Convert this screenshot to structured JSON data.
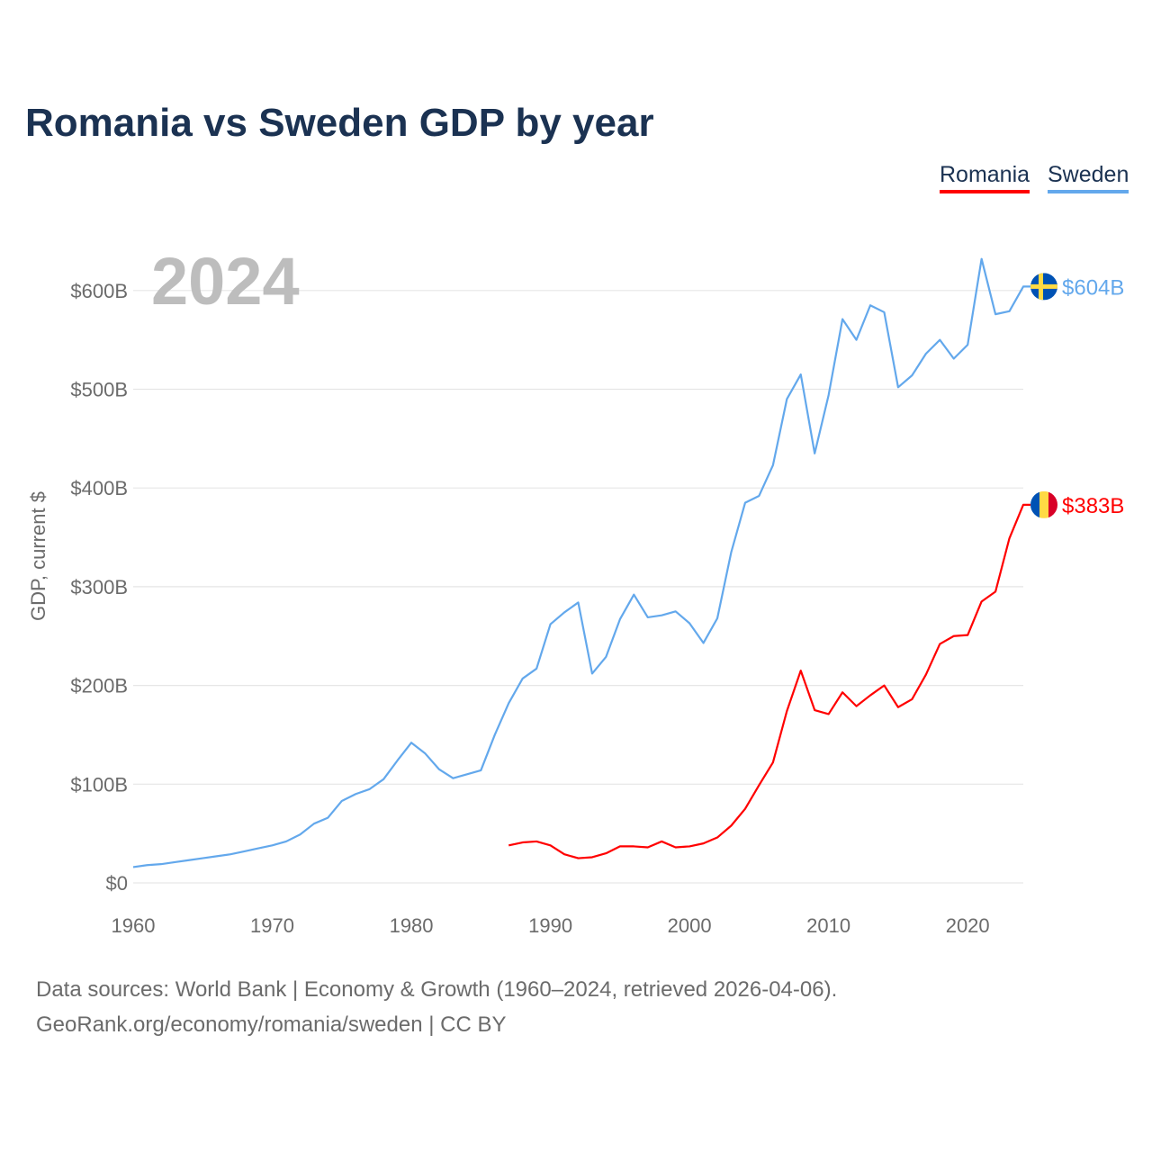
{
  "chart_data": {
    "type": "line",
    "title": "Romania vs Sweden GDP by year",
    "ylabel": "GDP, current $",
    "xlabel": "",
    "year_label": "2024",
    "xlim": [
      1960,
      2024
    ],
    "ylim": [
      0,
      650
    ],
    "x_ticks": [
      1960,
      1970,
      1980,
      1990,
      2000,
      2010,
      2020
    ],
    "y_ticks": [
      0,
      100,
      200,
      300,
      400,
      500,
      600
    ],
    "y_tick_labels": [
      "$0",
      "$100B",
      "$200B",
      "$300B",
      "$400B",
      "$500B",
      "$600B"
    ],
    "grid": true,
    "legend_position": "top-right",
    "series": [
      {
        "name": "Romania",
        "color": "#ff0000",
        "end_label": "$383B",
        "flag": "romania-flag",
        "start_year": 1987,
        "values": [
          38,
          41,
          42,
          38,
          29,
          25,
          26,
          30,
          37,
          37,
          36,
          42,
          36,
          37,
          40,
          46,
          58,
          75,
          99,
          122,
          174,
          215,
          175,
          171,
          193,
          179,
          190,
          200,
          178,
          186,
          211,
          242,
          250,
          251,
          285,
          295,
          349,
          383
        ]
      },
      {
        "name": "Sweden",
        "color": "#63a8ec",
        "end_label": "$604B",
        "flag": "sweden-flag",
        "start_year": 1960,
        "values": [
          16,
          18,
          19,
          21,
          23,
          25,
          27,
          29,
          32,
          35,
          38,
          42,
          49,
          60,
          66,
          83,
          90,
          95,
          105,
          124,
          142,
          131,
          115,
          106,
          110,
          114,
          150,
          182,
          207,
          217,
          262,
          274,
          284,
          212,
          229,
          267,
          292,
          269,
          271,
          275,
          263,
          243,
          268,
          335,
          385,
          392,
          423,
          490,
          515,
          435,
          494,
          571,
          550,
          585,
          578,
          502,
          514,
          536,
          550,
          531,
          545,
          632,
          576,
          579,
          604
        ]
      }
    ]
  },
  "footer": {
    "line1": "Data sources: World Bank | Economy & Growth (1960–2024, retrieved 2026-04-06).",
    "line2": "GeoRank.org/economy/romania/sweden | CC BY"
  }
}
